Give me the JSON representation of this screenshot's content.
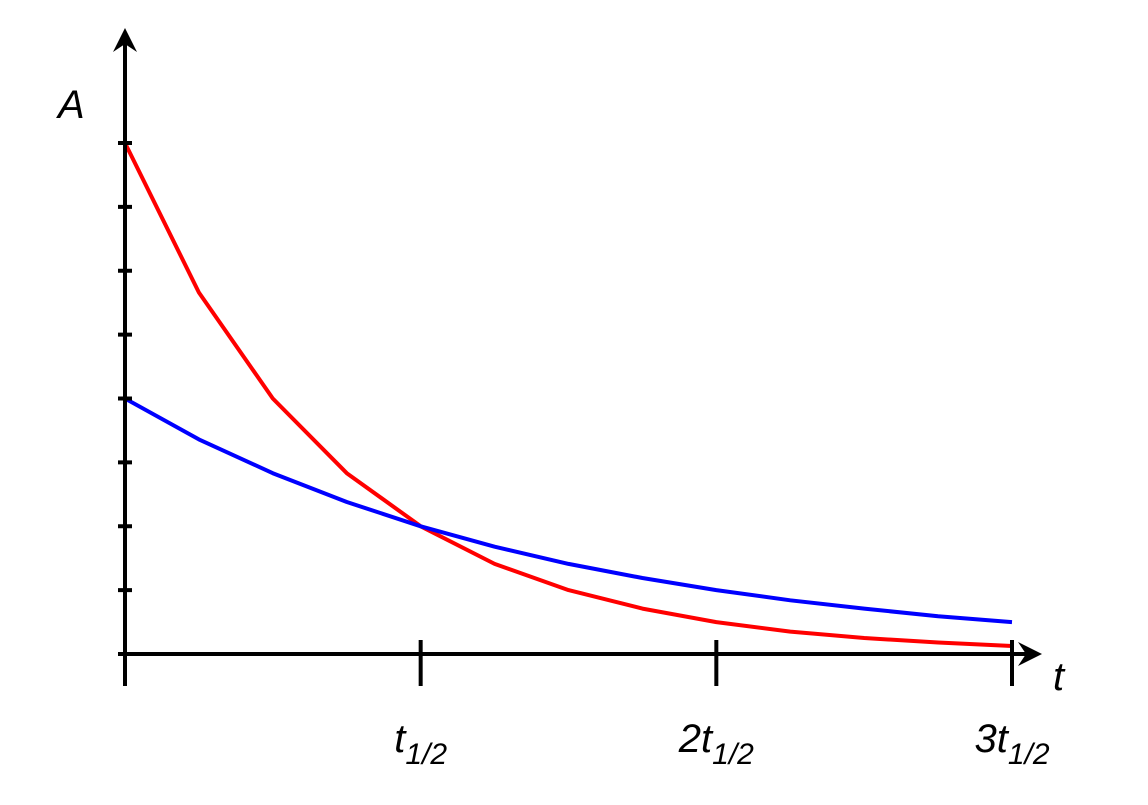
{
  "chart_data": {
    "type": "line",
    "x_label": "t",
    "y_label": "A",
    "x": [
      0,
      0.25,
      0.5,
      0.75,
      1,
      1.25,
      1.5,
      1.75,
      2,
      2.25,
      2.5,
      2.75,
      3
    ],
    "series": [
      {
        "color": "#ff0000",
        "values": [
          8,
          5.66,
          4,
          2.83,
          2,
          1.41,
          1,
          0.71,
          0.5,
          0.35,
          0.25,
          0.18,
          0.125
        ]
      },
      {
        "color": "#0000ff",
        "values": [
          4,
          3.36,
          2.83,
          2.38,
          2,
          1.68,
          1.41,
          1.19,
          1,
          0.84,
          0.71,
          0.59,
          0.5
        ]
      }
    ],
    "xlim": [
      0,
      3
    ],
    "ylim": [
      0,
      8
    ],
    "xticks": [
      0,
      {
        "value": 1,
        "label": "t1/2"
      },
      {
        "value": 2,
        "label": "2t1/2"
      },
      {
        "value": 3,
        "label": "3t1/2"
      }
    ],
    "yticks": [
      0,
      1,
      2,
      3,
      4,
      5,
      6,
      7,
      8
    ]
  }
}
